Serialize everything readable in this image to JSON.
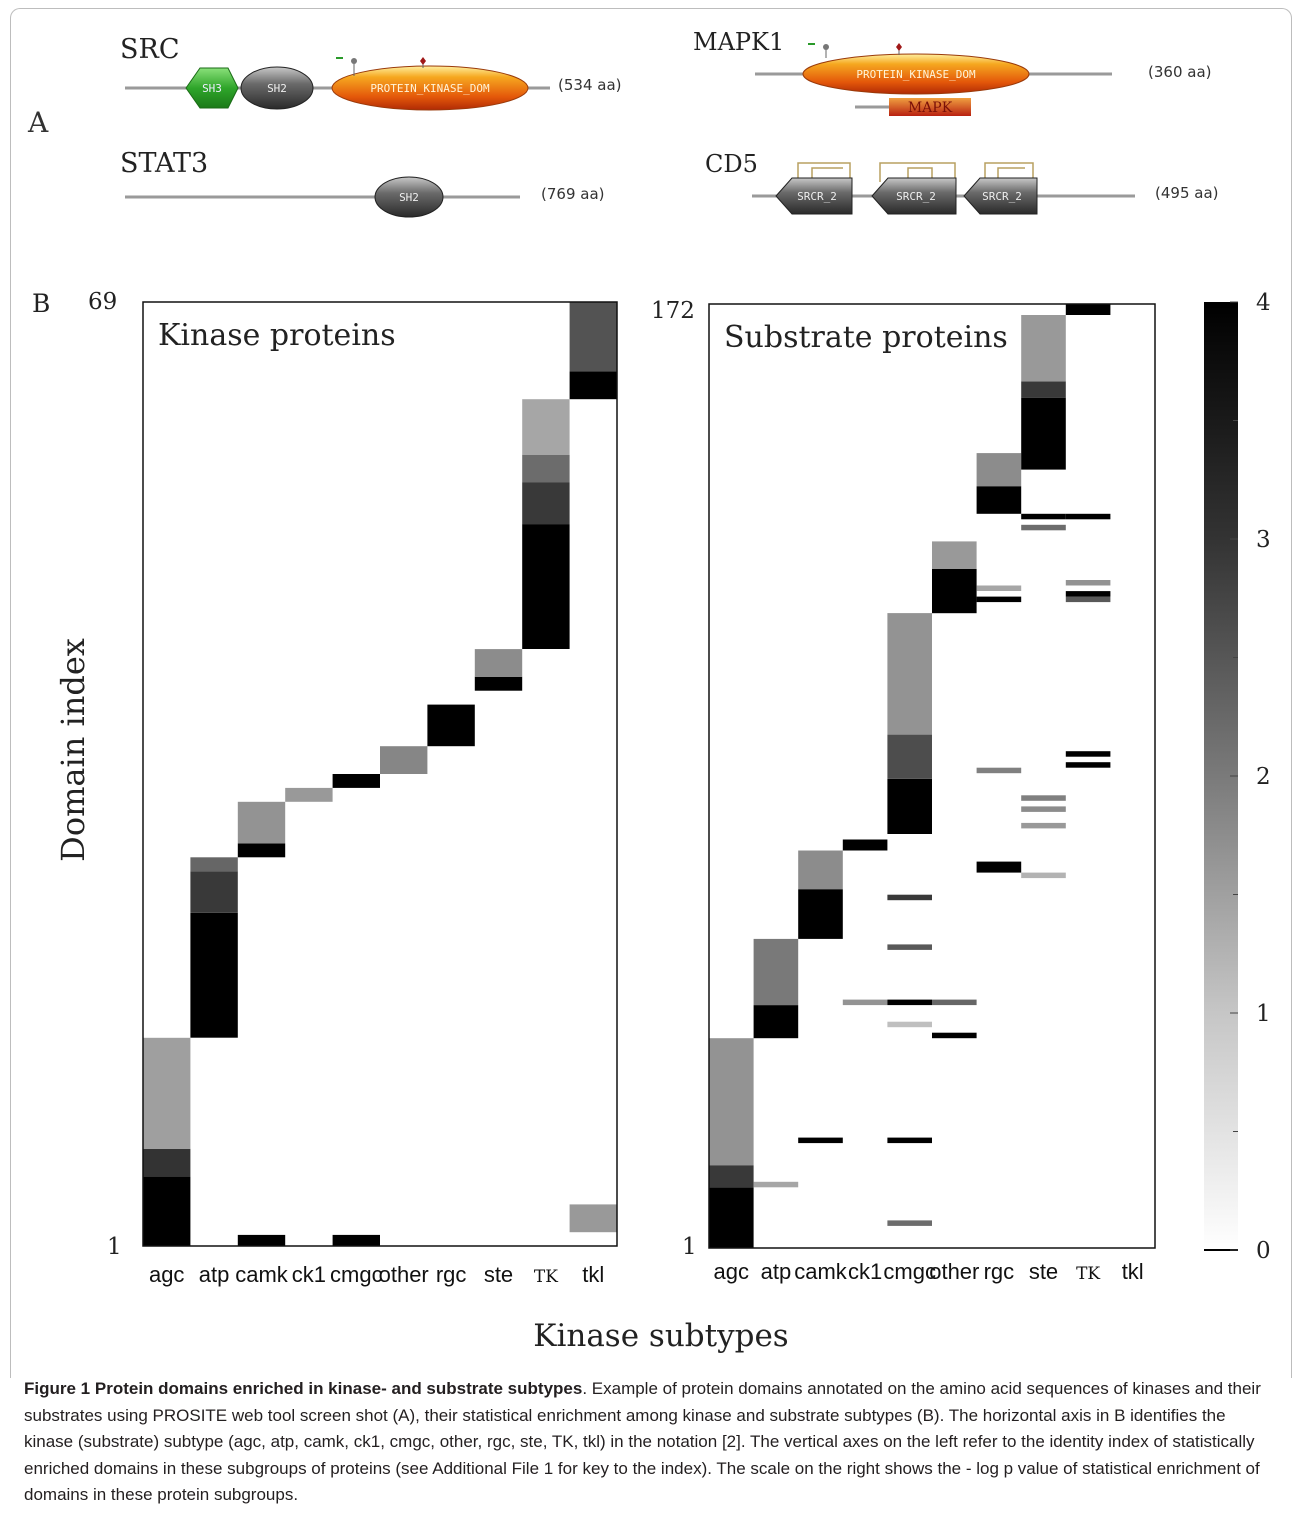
{
  "panel_a": {
    "label": "A",
    "proteins": [
      {
        "name": "SRC",
        "length": "(534 aa)",
        "domains": [
          "SH3",
          "SH2",
          "PROTEIN_KINASE_DOM"
        ]
      },
      {
        "name": "MAPK1",
        "length": "(360 aa)",
        "domains": [
          "PROTEIN_KINASE_DOM",
          "MAPK"
        ]
      },
      {
        "name": "STAT3",
        "length": "(769 aa)",
        "domains": [
          "SH2"
        ]
      },
      {
        "name": "CD5",
        "length": "(495 aa)",
        "domains": [
          "SRCR_2",
          "SRCR_2",
          "SRCR_2"
        ]
      }
    ]
  },
  "panel_b": {
    "label": "B",
    "ylabel": "Domain index",
    "xlabel": "Kinase subtypes",
    "colorbar_ticks": [
      "0",
      "1",
      "2",
      "3",
      "4"
    ]
  },
  "chart_data": [
    {
      "type": "heatmap",
      "title": "Kinase proteins",
      "ylabel": "Domain index",
      "xlabel": "Kinase subtypes",
      "categories": [
        "agc",
        "atp",
        "camk",
        "ck1",
        "cmgc",
        "other",
        "rgc",
        "ste",
        "TK",
        "tkl"
      ],
      "ylim": [
        1,
        69
      ],
      "ytick_labels": [
        "1",
        "69"
      ],
      "value_range": [
        0,
        4
      ],
      "cells": [
        {
          "col": 0,
          "y0": 1,
          "y1": 6,
          "value": 4
        },
        {
          "col": 0,
          "y0": 6,
          "y1": 8,
          "value": 3.2
        },
        {
          "col": 0,
          "y0": 8,
          "y1": 16,
          "value": 1.5
        },
        {
          "col": 2,
          "y0": 1,
          "y1": 1.8,
          "value": 4
        },
        {
          "col": 1,
          "y0": 16,
          "y1": 25,
          "value": 4
        },
        {
          "col": 1,
          "y0": 25,
          "y1": 28,
          "value": 3.1
        },
        {
          "col": 1,
          "y0": 28,
          "y1": 29,
          "value": 2.4
        },
        {
          "col": 2,
          "y0": 29,
          "y1": 30,
          "value": 4
        },
        {
          "col": 2,
          "y0": 30,
          "y1": 33,
          "value": 1.7
        },
        {
          "col": 3,
          "y0": 33,
          "y1": 34,
          "value": 1.6
        },
        {
          "col": 4,
          "y0": 34,
          "y1": 35,
          "value": 4
        },
        {
          "col": 4,
          "y0": 1,
          "y1": 1.8,
          "value": 4
        },
        {
          "col": 5,
          "y0": 35,
          "y1": 37,
          "value": 1.9
        },
        {
          "col": 6,
          "y0": 37,
          "y1": 40,
          "value": 4
        },
        {
          "col": 7,
          "y0": 41,
          "y1": 42,
          "value": 4
        },
        {
          "col": 7,
          "y0": 42,
          "y1": 44,
          "value": 1.8
        },
        {
          "col": 8,
          "y0": 44,
          "y1": 53,
          "value": 4
        },
        {
          "col": 8,
          "y0": 53,
          "y1": 56,
          "value": 3.1
        },
        {
          "col": 8,
          "y0": 56,
          "y1": 58,
          "value": 2.3
        },
        {
          "col": 8,
          "y0": 58,
          "y1": 62,
          "value": 1.4
        },
        {
          "col": 9,
          "y0": 62,
          "y1": 64,
          "value": 4
        },
        {
          "col": 9,
          "y0": 64,
          "y1": 69,
          "value": 2.7
        },
        {
          "col": 9,
          "y0": 2,
          "y1": 4,
          "value": 1.6
        }
      ]
    },
    {
      "type": "heatmap",
      "title": "Substrate proteins",
      "ylabel": "Domain index",
      "xlabel": "Kinase subtypes",
      "categories": [
        "agc",
        "atp",
        "camk",
        "ck1",
        "cmgc",
        "other",
        "rgc",
        "ste",
        "TK",
        "tkl"
      ],
      "ylim": [
        1,
        172
      ],
      "ytick_labels": [
        "1",
        "172"
      ],
      "value_range": [
        0,
        4
      ],
      "cells": [
        {
          "col": 0,
          "y0": 1,
          "y1": 12,
          "value": 4
        },
        {
          "col": 0,
          "y0": 12,
          "y1": 16,
          "value": 3.1
        },
        {
          "col": 0,
          "y0": 16,
          "y1": 39,
          "value": 1.7
        },
        {
          "col": 1,
          "y0": 12,
          "y1": 13,
          "value": 1.4
        },
        {
          "col": 1,
          "y0": 39,
          "y1": 45,
          "value": 4
        },
        {
          "col": 1,
          "y0": 45,
          "y1": 57,
          "value": 2.1
        },
        {
          "col": 2,
          "y0": 20,
          "y1": 21,
          "value": 4
        },
        {
          "col": 2,
          "y0": 57,
          "y1": 66,
          "value": 4
        },
        {
          "col": 2,
          "y0": 66,
          "y1": 73,
          "value": 1.8
        },
        {
          "col": 3,
          "y0": 45,
          "y1": 46,
          "value": 1.7
        },
        {
          "col": 3,
          "y0": 73,
          "y1": 75,
          "value": 4
        },
        {
          "col": 4,
          "y0": 5,
          "y1": 6,
          "value": 2.3
        },
        {
          "col": 4,
          "y0": 20,
          "y1": 21,
          "value": 4
        },
        {
          "col": 4,
          "y0": 41,
          "y1": 42,
          "value": 1.0
        },
        {
          "col": 4,
          "y0": 45,
          "y1": 46,
          "value": 4
        },
        {
          "col": 4,
          "y0": 55,
          "y1": 56,
          "value": 2.6
        },
        {
          "col": 4,
          "y0": 64,
          "y1": 65,
          "value": 3.1
        },
        {
          "col": 4,
          "y0": 76,
          "y1": 86,
          "value": 4
        },
        {
          "col": 4,
          "y0": 86,
          "y1": 94,
          "value": 2.8
        },
        {
          "col": 4,
          "y0": 94,
          "y1": 116,
          "value": 1.7
        },
        {
          "col": 5,
          "y0": 39,
          "y1": 40,
          "value": 4
        },
        {
          "col": 5,
          "y0": 45,
          "y1": 46,
          "value": 2.4
        },
        {
          "col": 5,
          "y0": 116,
          "y1": 124,
          "value": 4
        },
        {
          "col": 5,
          "y0": 124,
          "y1": 129,
          "value": 1.6
        },
        {
          "col": 6,
          "y0": 69,
          "y1": 71,
          "value": 4
        },
        {
          "col": 6,
          "y0": 87,
          "y1": 88,
          "value": 2.0
        },
        {
          "col": 6,
          "y0": 118,
          "y1": 119,
          "value": 4
        },
        {
          "col": 6,
          "y0": 120,
          "y1": 121,
          "value": 1.4
        },
        {
          "col": 6,
          "y0": 134,
          "y1": 139,
          "value": 4
        },
        {
          "col": 6,
          "y0": 139,
          "y1": 145,
          "value": 1.8
        },
        {
          "col": 7,
          "y0": 68,
          "y1": 69,
          "value": 1.2
        },
        {
          "col": 7,
          "y0": 77,
          "y1": 78,
          "value": 1.6
        },
        {
          "col": 7,
          "y0": 80,
          "y1": 81,
          "value": 1.8
        },
        {
          "col": 7,
          "y0": 82,
          "y1": 83,
          "value": 2.0
        },
        {
          "col": 7,
          "y0": 131,
          "y1": 132,
          "value": 2.3
        },
        {
          "col": 7,
          "y0": 133,
          "y1": 134,
          "value": 4
        },
        {
          "col": 7,
          "y0": 142,
          "y1": 155,
          "value": 4
        },
        {
          "col": 7,
          "y0": 155,
          "y1": 158,
          "value": 3.1
        },
        {
          "col": 7,
          "y0": 158,
          "y1": 170,
          "value": 1.6
        },
        {
          "col": 8,
          "y0": 88,
          "y1": 89,
          "value": 4
        },
        {
          "col": 8,
          "y0": 90,
          "y1": 91,
          "value": 4
        },
        {
          "col": 8,
          "y0": 118,
          "y1": 119,
          "value": 2.6
        },
        {
          "col": 8,
          "y0": 119,
          "y1": 120,
          "value": 4
        },
        {
          "col": 8,
          "y0": 121,
          "y1": 122,
          "value": 1.7
        },
        {
          "col": 8,
          "y0": 133,
          "y1": 134,
          "value": 4
        },
        {
          "col": 8,
          "y0": 170,
          "y1": 172,
          "value": 4
        }
      ]
    }
  ],
  "caption": {
    "label": "Figure 1",
    "title": "Protein domains enriched in kinase- and substrate subtypes",
    "text": ". Example of protein domains annotated on the amino acid sequences of kinases and their substrates using PROSITE web tool screen shot (A), their statistical enrichment among kinase and substrate subtypes (B). The horizontal axis in B identifies the kinase (substrate) subtype (agc, atp, camk, ck1, cmgc, other, rgc, ste, TK, tkl) in the notation [2]. The vertical axes on the left refer to the identity index of statistically enriched domains in these subgroups of proteins (see Additional File 1 for key to the index). The scale on the right shows the - log p value of statistical enrichment of domains in these protein subgroups."
  }
}
